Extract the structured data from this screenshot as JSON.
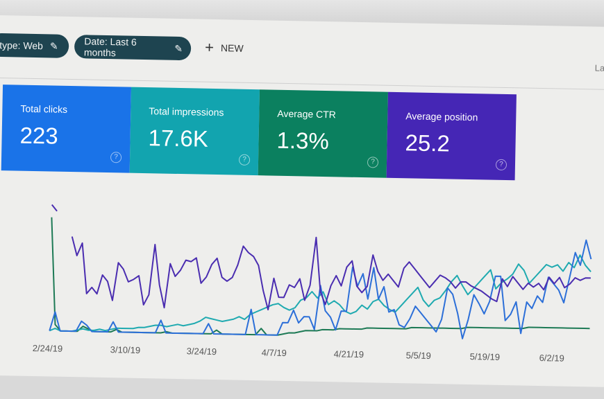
{
  "toolbar": {
    "filters": [
      {
        "label": "type: Web",
        "icon": "pencil-icon"
      },
      {
        "label": "Date: Last 6 months",
        "icon": "pencil-icon"
      }
    ],
    "new_button": {
      "icon": "plus-icon",
      "label": "NEW"
    },
    "right_partial_label": "La"
  },
  "cards": [
    {
      "title": "Total clicks",
      "value": "223",
      "color": "#1a73e8",
      "help": "?"
    },
    {
      "title": "Total impressions",
      "value": "17.6K",
      "color": "#12a4af",
      "help": "?"
    },
    {
      "title": "Average CTR",
      "value": "1.3%",
      "color": "#0b805f",
      "help": "?"
    },
    {
      "title": "Average position",
      "value": "25.2",
      "color": "#4526b5",
      "help": "?"
    }
  ],
  "chart_data": {
    "type": "line",
    "title": "",
    "xlabel": "",
    "ylabel": "",
    "x_tick_labels": [
      "2/24/19",
      "3/10/19",
      "3/24/19",
      "4/7/19",
      "4/21/19",
      "5/5/19",
      "5/19/19",
      "6/2/19"
    ],
    "grid": false,
    "legend": "none (metric cards act as legend)",
    "ylim": [
      0,
      100
    ],
    "series": [
      {
        "name": "Average position",
        "color": "#4a2db0",
        "values": [
          100,
          95,
          null,
          null,
          75,
          60,
          70,
          30,
          35,
          30,
          45,
          40,
          25,
          55,
          50,
          40,
          42,
          45,
          22,
          30,
          70,
          38,
          20,
          55,
          45,
          50,
          58,
          57,
          60,
          40,
          45,
          55,
          60,
          45,
          42,
          45,
          55,
          70,
          65,
          62,
          55,
          35,
          20,
          45,
          30,
          30,
          40,
          38,
          45,
          28,
          40,
          78,
          35,
          25,
          40,
          48,
          40,
          55,
          60,
          40,
          35,
          40,
          65,
          52,
          45,
          50,
          45,
          40,
          55,
          60,
          55,
          50,
          45,
          40,
          45,
          50,
          48,
          45,
          40,
          45,
          45,
          42,
          40,
          38,
          35,
          32,
          30,
          48,
          42,
          50,
          45,
          40,
          45,
          42,
          45,
          40,
          50,
          45,
          50,
          42,
          45,
          50,
          48,
          50,
          50
        ]
      },
      {
        "name": "Total clicks",
        "color": "#2c6fd8",
        "values": [
          0,
          15,
          0,
          0,
          0,
          0,
          8,
          5,
          0,
          0,
          0,
          0,
          8,
          0,
          0,
          0,
          0,
          0,
          0,
          0,
          0,
          10,
          0,
          0,
          0,
          0,
          0,
          0,
          0,
          0,
          8,
          0,
          0,
          0,
          0,
          0,
          0,
          0,
          20,
          0,
          0,
          0,
          0,
          0,
          10,
          10,
          20,
          10,
          15,
          15,
          5,
          40,
          20,
          15,
          5,
          20,
          20,
          55,
          40,
          50,
          30,
          55,
          30,
          40,
          20,
          22,
          10,
          8,
          15,
          25,
          20,
          15,
          10,
          5,
          15,
          40,
          35,
          20,
          0,
          15,
          35,
          28,
          20,
          30,
          50,
          50,
          15,
          20,
          30,
          5,
          30,
          25,
          35,
          30,
          50,
          45,
          40,
          30,
          50,
          70,
          60,
          80,
          65
        ]
      },
      {
        "name": "Total impressions",
        "color": "#1faab0",
        "values": [
          0,
          2,
          0,
          0,
          0,
          1,
          2,
          1,
          1,
          2,
          1,
          2,
          3,
          3,
          3,
          3,
          4,
          4,
          5,
          6,
          6,
          5,
          6,
          7,
          6,
          7,
          8,
          10,
          13,
          12,
          11,
          10,
          11,
          12,
          14,
          12,
          16,
          18,
          20,
          22,
          24,
          25,
          22,
          20,
          22,
          28,
          30,
          35,
          30,
          35,
          25,
          28,
          25,
          20,
          18,
          20,
          25,
          22,
          28,
          30,
          25,
          22,
          20,
          25,
          30,
          35,
          40,
          30,
          25,
          30,
          32,
          38,
          45,
          50,
          42,
          35,
          40,
          45,
          50,
          55,
          40,
          45,
          48,
          52,
          60,
          55,
          45,
          50,
          55,
          60,
          58,
          60,
          55,
          62,
          58,
          68,
          60,
          55
        ]
      },
      {
        "name": "Average CTR",
        "color": "#1d7a55",
        "values": [
          90,
          5,
          0,
          0,
          0,
          0,
          4,
          2,
          0,
          0,
          0,
          0,
          2,
          0,
          0,
          0,
          0,
          0,
          0,
          0,
          0,
          1,
          0,
          0,
          0,
          0,
          0,
          0,
          0,
          0,
          3,
          0,
          0,
          0,
          0,
          0,
          0,
          0,
          5,
          0,
          0,
          0,
          1,
          2,
          2,
          3,
          4,
          4,
          4,
          5,
          5,
          5,
          6,
          6,
          6,
          6,
          6,
          7,
          7,
          7,
          7,
          7,
          7,
          7,
          7,
          8,
          8,
          8,
          8,
          8,
          8,
          8,
          8,
          8,
          8,
          9,
          9,
          9,
          9,
          9,
          9,
          9,
          9,
          9,
          9,
          9,
          10,
          10,
          10,
          10,
          10,
          10,
          10,
          10,
          10,
          10,
          10,
          10
        ]
      }
    ]
  }
}
